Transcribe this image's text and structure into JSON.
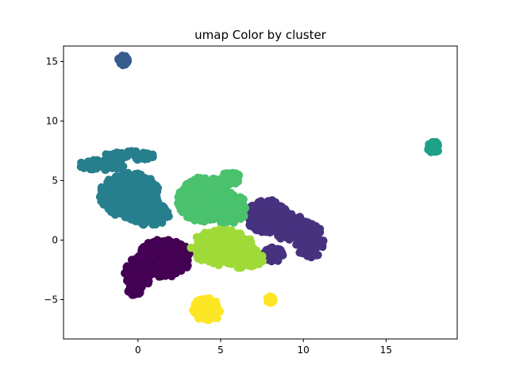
{
  "chart_data": {
    "type": "scatter",
    "title": "umap Color by cluster",
    "xlabel": "",
    "ylabel": "",
    "xlim": [
      -4.5,
      19.3
    ],
    "ylim": [
      -8.3,
      16.3
    ],
    "x_ticks": [
      0,
      5,
      10,
      15
    ],
    "x_tick_labels": [
      "0",
      "5",
      "10",
      "15"
    ],
    "y_ticks": [
      -5,
      0,
      5,
      10,
      15
    ],
    "y_tick_labels": [
      "−5",
      "0",
      "5",
      "10",
      "15"
    ],
    "grid": false,
    "legend": "none",
    "clusters": [
      {
        "id": 0,
        "color": "#440154",
        "blobs": [
          {
            "cx": 1.6,
            "cy": -1.5,
            "rx": 1.6,
            "ry": 1.6
          },
          {
            "cx": 0.0,
            "cy": -2.8,
            "rx": 0.8,
            "ry": 1.3
          },
          {
            "cx": -0.2,
            "cy": -4.2,
            "rx": 0.4,
            "ry": 0.5
          }
        ]
      },
      {
        "id": 1,
        "color": "#46327e",
        "blobs": [
          {
            "cx": 7.8,
            "cy": 2.0,
            "rx": 1.3,
            "ry": 1.4
          },
          {
            "cx": 9.3,
            "cy": 1.0,
            "rx": 1.0,
            "ry": 1.2
          },
          {
            "cx": 10.4,
            "cy": 0.0,
            "rx": 0.9,
            "ry": 1.5
          },
          {
            "cx": 8.2,
            "cy": -1.2,
            "rx": 0.6,
            "ry": 0.6
          }
        ]
      },
      {
        "id": 2,
        "color": "#365c8d",
        "blobs": [
          {
            "cx": -0.9,
            "cy": 15.1,
            "rx": 0.3,
            "ry": 0.4
          }
        ]
      },
      {
        "id": 3,
        "color": "#277f8e",
        "blobs": [
          {
            "cx": -0.5,
            "cy": 3.8,
            "rx": 1.8,
            "ry": 1.9
          },
          {
            "cx": 0.6,
            "cy": 2.2,
            "rx": 1.3,
            "ry": 1.0
          },
          {
            "cx": -0.5,
            "cy": 7.1,
            "rx": 1.5,
            "ry": 0.4
          },
          {
            "cx": -2.2,
            "cy": 6.3,
            "rx": 1.4,
            "ry": 0.45
          }
        ]
      },
      {
        "id": 4,
        "color": "#1fa187",
        "blobs": [
          {
            "cx": 17.9,
            "cy": 7.8,
            "rx": 0.4,
            "ry": 0.45
          }
        ]
      },
      {
        "id": 5,
        "color": "#4ac16d",
        "blobs": [
          {
            "cx": 4.0,
            "cy": 3.4,
            "rx": 1.6,
            "ry": 1.9
          },
          {
            "cx": 5.4,
            "cy": 2.7,
            "rx": 1.2,
            "ry": 1.3
          },
          {
            "cx": 5.6,
            "cy": 5.2,
            "rx": 0.6,
            "ry": 0.5
          }
        ]
      },
      {
        "id": 6,
        "color": "#a0da39",
        "blobs": [
          {
            "cx": 5.1,
            "cy": -0.6,
            "rx": 1.9,
            "ry": 1.5
          },
          {
            "cx": 6.3,
            "cy": -1.5,
            "rx": 1.3,
            "ry": 0.9
          }
        ]
      },
      {
        "id": 7,
        "color": "#fde725",
        "blobs": [
          {
            "cx": 4.2,
            "cy": -5.8,
            "rx": 0.9,
            "ry": 1.0
          },
          {
            "cx": 8.0,
            "cy": -5.0,
            "rx": 0.2,
            "ry": 0.3
          }
        ]
      }
    ]
  }
}
